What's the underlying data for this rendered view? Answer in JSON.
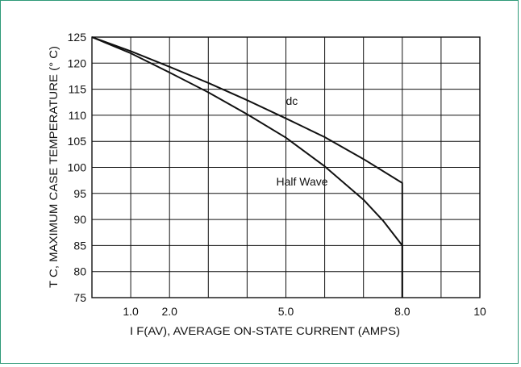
{
  "chart_data": {
    "type": "line",
    "xlabel": "I F(AV), AVERAGE ON-STATE CURRENT (AMPS)",
    "ylabel": "T C, MAXIMUM CASE TEMPERATURE (° C)",
    "xlim": [
      0,
      10
    ],
    "ylim": [
      75,
      125
    ],
    "x_ticks": [
      {
        "value": 1,
        "label": "1.0"
      },
      {
        "value": 2,
        "label": "2.0"
      },
      {
        "value": 5,
        "label": "5.0"
      },
      {
        "value": 8,
        "label": "8.0"
      },
      {
        "value": 10,
        "label": "10"
      }
    ],
    "y_ticks": [
      75,
      80,
      85,
      90,
      95,
      100,
      105,
      110,
      115,
      120,
      125
    ],
    "x_grid": [
      1,
      2,
      3,
      4,
      5,
      6,
      7,
      8,
      9,
      10
    ],
    "grid": true,
    "series": [
      {
        "name": "dc",
        "x": [
          0,
          1,
          2,
          3,
          4,
          5,
          6,
          7,
          8,
          8
        ],
        "y": [
          125,
          122.3,
          119.3,
          116.2,
          112.9,
          109.4,
          105.8,
          101.6,
          97,
          75
        ]
      },
      {
        "name": "Half Wave",
        "x": [
          0,
          1,
          2,
          3,
          4,
          5,
          6,
          7,
          7.5,
          8,
          8
        ],
        "y": [
          125,
          121.9,
          118.2,
          114.4,
          110.2,
          105.7,
          100.2,
          93.8,
          89.8,
          85,
          75
        ]
      }
    ],
    "annotations": [
      {
        "text": "dc",
        "x": 5,
        "y": 112
      },
      {
        "text": "Half Wave",
        "x": 5,
        "y": 96.5
      }
    ]
  }
}
